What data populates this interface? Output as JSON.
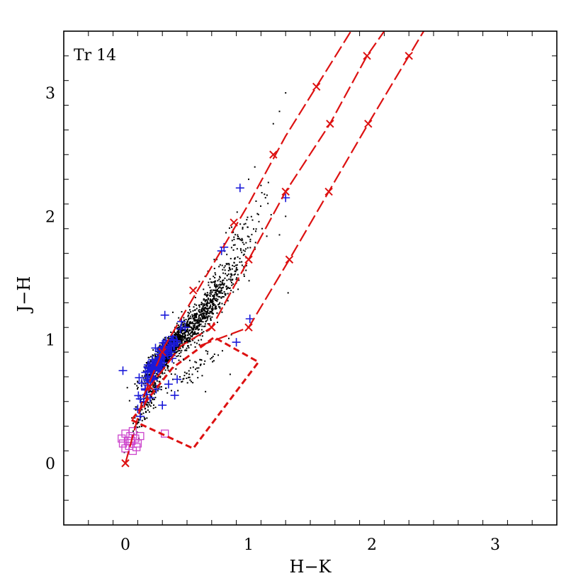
{
  "chart_data": {
    "type": "scatter",
    "title": "",
    "panel_label": "Tr 14",
    "xlabel": "H−K",
    "ylabel": "J−H",
    "xlim": [
      -0.5,
      3.5
    ],
    "ylim": [
      -0.5,
      3.5
    ],
    "x_major_ticks": [
      0,
      1,
      2,
      3
    ],
    "x_tick_labels": [
      "0",
      "1",
      "2",
      "3"
    ],
    "y_major_ticks": [
      0,
      1,
      2,
      3
    ],
    "y_tick_labels": [
      "0",
      "1",
      "2",
      "3"
    ],
    "minor_tick_step": 0.2,
    "grid": false,
    "colors": {
      "black_points": "#000000",
      "blue_points": "#1a1ad9",
      "magenta_points": "#cc44cc",
      "reddening_lines": "#dd1111"
    },
    "series": [
      {
        "marker": "dot",
        "color": "#000000",
        "clusters": [
          {
            "x": 0.33,
            "y": 0.9,
            "sx": 0.08,
            "sy": 0.1,
            "n": 900
          },
          {
            "x": 0.55,
            "y": 1.1,
            "sx": 0.12,
            "sy": 0.15,
            "n": 450
          },
          {
            "x": 0.72,
            "y": 1.35,
            "sx": 0.12,
            "sy": 0.15,
            "n": 250
          },
          {
            "x": 0.2,
            "y": 0.55,
            "sx": 0.07,
            "sy": 0.15,
            "n": 180
          },
          {
            "x": 0.9,
            "y": 1.75,
            "sx": 0.14,
            "sy": 0.22,
            "n": 120
          },
          {
            "x": 0.55,
            "y": 0.75,
            "sx": 0.12,
            "sy": 0.1,
            "n": 60
          }
        ],
        "points": [
          [
            1.3,
            3.0
          ],
          [
            1.25,
            2.85
          ],
          [
            1.2,
            2.75
          ],
          [
            1.05,
            2.4
          ],
          [
            1.0,
            2.3
          ],
          [
            1.1,
            2.25
          ],
          [
            1.3,
            2.0
          ],
          [
            1.25,
            1.85
          ],
          [
            1.32,
            1.38
          ],
          [
            1.05,
            1.75
          ],
          [
            0.65,
            0.58
          ],
          [
            0.85,
            0.72
          ]
        ]
      },
      {
        "marker": "plus",
        "color": "#1a1ad9",
        "clusters": [
          {
            "x": 0.3,
            "y": 0.88,
            "sx": 0.06,
            "sy": 0.08,
            "n": 90
          },
          {
            "x": 0.22,
            "y": 0.7,
            "sx": 0.05,
            "sy": 0.1,
            "n": 30
          }
        ],
        "points": [
          [
            -0.02,
            0.75
          ],
          [
            0.93,
            2.23
          ],
          [
            1.3,
            2.15
          ],
          [
            0.8,
            1.75
          ],
          [
            0.78,
            1.72
          ],
          [
            0.32,
            1.2
          ],
          [
            1.01,
            1.17
          ],
          [
            0.9,
            0.98
          ],
          [
            0.35,
            0.64
          ],
          [
            0.3,
            0.47
          ],
          [
            0.12,
            0.38
          ],
          [
            0.1,
            0.44
          ],
          [
            0.2,
            0.53
          ],
          [
            0.15,
            0.5
          ],
          [
            0.25,
            0.6
          ],
          [
            0.4,
            0.55
          ],
          [
            0.42,
            0.68
          ],
          [
            0.38,
            0.85
          ]
        ]
      },
      {
        "marker": "square",
        "color": "#cc44cc",
        "points": [
          [
            -0.03,
            0.2
          ],
          [
            0.0,
            0.24
          ],
          [
            0.02,
            0.18
          ],
          [
            0.04,
            0.22
          ],
          [
            0.06,
            0.26
          ],
          [
            0.08,
            0.2
          ],
          [
            0.1,
            0.16
          ],
          [
            0.12,
            0.22
          ],
          [
            0.0,
            0.12
          ],
          [
            0.03,
            0.14
          ],
          [
            0.06,
            0.1
          ],
          [
            0.09,
            0.13
          ],
          [
            -0.02,
            0.16
          ],
          [
            0.05,
            0.18
          ],
          [
            0.32,
            0.24
          ]
        ]
      }
    ],
    "reddening_lines": [
      {
        "points": [
          [
            0.0,
            0.0
          ],
          [
            0.15,
            0.55
          ],
          [
            0.32,
            0.95
          ],
          [
            1.0,
            2.1
          ],
          [
            1.3,
            2.65
          ],
          [
            1.83,
            3.5
          ]
        ],
        "crosses": [
          [
            0.0,
            0.0
          ],
          [
            0.3,
            0.9
          ],
          [
            0.55,
            1.4
          ],
          [
            0.88,
            1.95
          ],
          [
            1.2,
            2.5
          ],
          [
            1.55,
            3.05
          ]
        ]
      },
      {
        "points": [
          [
            0.15,
            0.45
          ],
          [
            0.2,
            0.62
          ],
          [
            0.45,
            0.95
          ],
          [
            0.7,
            1.1
          ],
          [
            1.0,
            1.65
          ],
          [
            1.3,
            2.2
          ],
          [
            1.66,
            2.75
          ],
          [
            1.96,
            3.3
          ],
          [
            2.1,
            3.5
          ]
        ],
        "crosses": [
          [
            0.2,
            0.62
          ],
          [
            0.7,
            1.1
          ],
          [
            1.0,
            1.65
          ],
          [
            1.3,
            2.2
          ],
          [
            1.66,
            2.75
          ],
          [
            1.96,
            3.3
          ]
        ]
      },
      {
        "points": [
          [
            0.6,
            0.95
          ],
          [
            1.0,
            1.1
          ],
          [
            1.33,
            1.65
          ],
          [
            1.65,
            2.2
          ],
          [
            1.97,
            2.75
          ],
          [
            2.3,
            3.3
          ],
          [
            2.42,
            3.5
          ]
        ],
        "crosses": [
          [
            1.0,
            1.1
          ],
          [
            1.33,
            1.65
          ],
          [
            1.65,
            2.2
          ],
          [
            1.97,
            2.75
          ],
          [
            2.3,
            3.3
          ]
        ]
      }
    ],
    "ctts_locus": {
      "points": [
        [
          0.05,
          0.35
        ],
        [
          0.55,
          0.12
        ],
        [
          1.08,
          0.82
        ],
        [
          0.72,
          1.02
        ],
        [
          0.38,
          0.77
        ]
      ]
    }
  }
}
